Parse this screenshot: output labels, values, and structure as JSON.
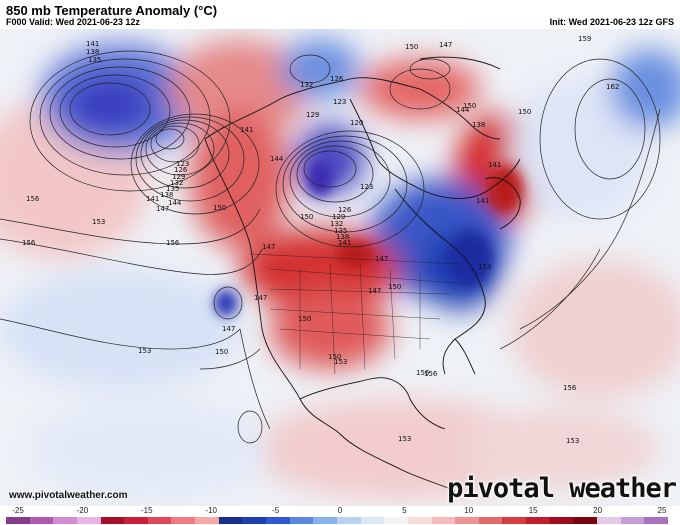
{
  "header": {
    "title": "850 mb Temperature Anomaly (°C)",
    "valid": "F000 Valid: Wed 2021-06-23 12z",
    "init": "Init: Wed 2021-06-23 12z GFS"
  },
  "footer": {
    "website": "www.pivotalweather.com",
    "brand": "pivotal weather"
  },
  "colorbar": {
    "ticks": [
      "-25",
      "-20",
      "-15",
      "-10",
      "-5",
      "0",
      "5",
      "10",
      "15",
      "20",
      "25"
    ],
    "colors": [
      "#8a3a8a",
      "#b05ab0",
      "#d48cd4",
      "#e6b4e6",
      "#a80f2c",
      "#c81e3a",
      "#e0485a",
      "#f07a80",
      "#f8a8a8",
      "#1a2e8c",
      "#203fb0",
      "#2e5cd0",
      "#5a8ae0",
      "#8ab2ec",
      "#b8d2f4",
      "#dce8f8",
      "#f4f4f4",
      "#f8dcdc",
      "#f4bcbc",
      "#ec9494",
      "#e26a6a",
      "#d43e3e",
      "#c01e2c",
      "#9e0c1e",
      "#7a0614",
      "#e6c8e8",
      "#c89cd4",
      "#a872c0"
    ]
  },
  "map": {
    "isobar_labels": [
      "141",
      "138",
      "135",
      "141",
      "123",
      "126",
      "129",
      "132",
      "135",
      "138",
      "141",
      "144",
      "147",
      "150",
      "153",
      "156",
      "156",
      "156",
      "153",
      "150",
      "147",
      "147",
      "150",
      "153",
      "150",
      "147",
      "150",
      "132",
      "129",
      "126",
      "123",
      "120",
      "123",
      "126",
      "129",
      "132",
      "135",
      "138",
      "141",
      "144",
      "147",
      "150",
      "153",
      "156",
      "150",
      "150",
      "147",
      "144",
      "141",
      "138",
      "141",
      "150",
      "159",
      "162",
      "156",
      "156",
      "153",
      "153",
      "147"
    ]
  }
}
